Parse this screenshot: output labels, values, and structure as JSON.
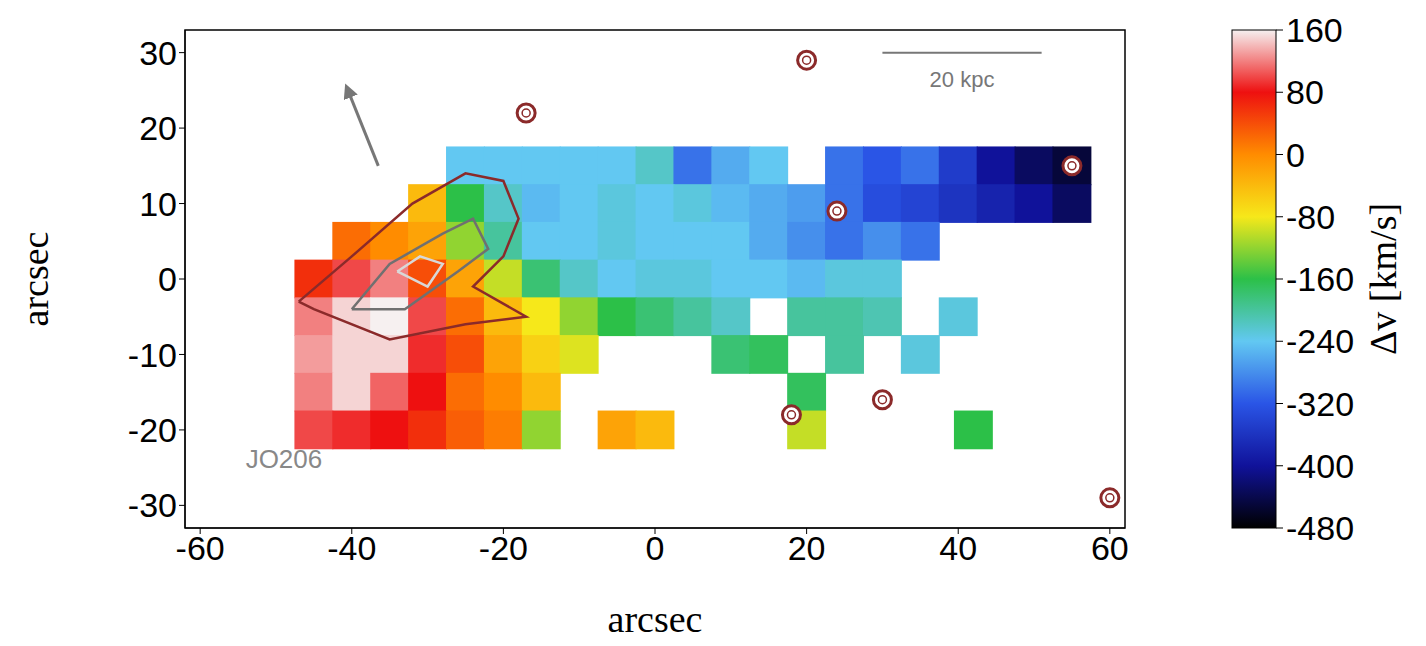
{
  "chart_data": {
    "type": "heatmap",
    "x_label": "arcsec",
    "y_label": "arcsec",
    "annotations": [
      "JO206",
      "20 kpc"
    ],
    "xlim": [
      -62,
      62
    ],
    "xticks": [
      -60,
      -40,
      -20,
      0,
      20,
      40,
      60
    ],
    "ylim": [
      -33,
      33
    ],
    "yticks": [
      -30,
      -20,
      -10,
      0,
      10,
      20,
      30
    ],
    "colorbar": {
      "label": "Δv [km/s]",
      "range": [
        -480,
        160
      ],
      "ticks": [
        160,
        80,
        0,
        -80,
        -160,
        -240,
        -320,
        -400,
        -480
      ]
    },
    "cells": [
      [
        -25,
        15,
        -240
      ],
      [
        -20,
        15,
        -240
      ],
      [
        -15,
        15,
        -240
      ],
      [
        -10,
        15,
        -240
      ],
      [
        -5,
        15,
        -240
      ],
      [
        0,
        15,
        -220
      ],
      [
        5,
        15,
        -300
      ],
      [
        10,
        15,
        -260
      ],
      [
        15,
        15,
        -240
      ],
      [
        25,
        15,
        -300
      ],
      [
        30,
        15,
        -320
      ],
      [
        35,
        15,
        -300
      ],
      [
        40,
        15,
        -350
      ],
      [
        45,
        15,
        -400
      ],
      [
        50,
        15,
        -430
      ],
      [
        55,
        15,
        -450
      ],
      [
        -30,
        10,
        -40
      ],
      [
        -25,
        10,
        -160
      ],
      [
        -20,
        10,
        -220
      ],
      [
        -15,
        10,
        -250
      ],
      [
        -10,
        10,
        -240
      ],
      [
        -5,
        10,
        -230
      ],
      [
        0,
        10,
        -240
      ],
      [
        5,
        10,
        -230
      ],
      [
        10,
        10,
        -250
      ],
      [
        15,
        10,
        -260
      ],
      [
        20,
        10,
        -270
      ],
      [
        25,
        10,
        -300
      ],
      [
        30,
        10,
        -330
      ],
      [
        35,
        10,
        -340
      ],
      [
        40,
        10,
        -360
      ],
      [
        45,
        10,
        -380
      ],
      [
        50,
        10,
        -400
      ],
      [
        55,
        10,
        -430
      ],
      [
        -40,
        5,
        20
      ],
      [
        -35,
        5,
        0
      ],
      [
        -30,
        5,
        -20
      ],
      [
        -25,
        5,
        -120
      ],
      [
        -20,
        5,
        -200
      ],
      [
        -15,
        5,
        -240
      ],
      [
        -10,
        5,
        -240
      ],
      [
        -5,
        5,
        -230
      ],
      [
        0,
        5,
        -240
      ],
      [
        5,
        5,
        -240
      ],
      [
        10,
        5,
        -240
      ],
      [
        15,
        5,
        -260
      ],
      [
        20,
        5,
        -280
      ],
      [
        25,
        5,
        -300
      ],
      [
        30,
        5,
        -280
      ],
      [
        35,
        5,
        -300
      ],
      [
        -45,
        0,
        60
      ],
      [
        -40,
        0,
        100
      ],
      [
        -35,
        0,
        120
      ],
      [
        -30,
        0,
        40
      ],
      [
        -25,
        0,
        -20
      ],
      [
        -20,
        0,
        -100
      ],
      [
        -15,
        0,
        -180
      ],
      [
        -10,
        0,
        -220
      ],
      [
        -5,
        0,
        -240
      ],
      [
        0,
        0,
        -230
      ],
      [
        5,
        0,
        -230
      ],
      [
        10,
        0,
        -240
      ],
      [
        15,
        0,
        -240
      ],
      [
        20,
        0,
        -250
      ],
      [
        25,
        0,
        -230
      ],
      [
        30,
        0,
        -230
      ],
      [
        -45,
        -5,
        120
      ],
      [
        -40,
        -5,
        150
      ],
      [
        -35,
        -5,
        160
      ],
      [
        -30,
        -5,
        100
      ],
      [
        -25,
        -5,
        20
      ],
      [
        -20,
        -5,
        -40
      ],
      [
        -15,
        -5,
        -80
      ],
      [
        -10,
        -5,
        -120
      ],
      [
        -5,
        -5,
        -160
      ],
      [
        0,
        -5,
        -180
      ],
      [
        5,
        -5,
        -200
      ],
      [
        10,
        -5,
        -220
      ],
      [
        20,
        -5,
        -200
      ],
      [
        25,
        -5,
        -200
      ],
      [
        30,
        -5,
        -210
      ],
      [
        40,
        -5,
        -230
      ],
      [
        -45,
        -10,
        130
      ],
      [
        -40,
        -10,
        150
      ],
      [
        -35,
        -10,
        150
      ],
      [
        -30,
        -10,
        90
      ],
      [
        -25,
        -10,
        40
      ],
      [
        -20,
        -10,
        -20
      ],
      [
        -15,
        -10,
        -60
      ],
      [
        -10,
        -10,
        -90
      ],
      [
        10,
        -10,
        -180
      ],
      [
        15,
        -10,
        -170
      ],
      [
        25,
        -10,
        -200
      ],
      [
        35,
        -10,
        -230
      ],
      [
        -45,
        -15,
        120
      ],
      [
        -40,
        -15,
        150
      ],
      [
        -35,
        -15,
        110
      ],
      [
        -30,
        -15,
        80
      ],
      [
        -25,
        -15,
        20
      ],
      [
        -20,
        -15,
        0
      ],
      [
        -15,
        -15,
        -40
      ],
      [
        20,
        -15,
        -170
      ],
      [
        -45,
        -20,
        100
      ],
      [
        -40,
        -20,
        90
      ],
      [
        -35,
        -20,
        80
      ],
      [
        -30,
        -20,
        60
      ],
      [
        -25,
        -20,
        30
      ],
      [
        -20,
        -20,
        10
      ],
      [
        -15,
        -20,
        -120
      ],
      [
        -5,
        -20,
        -20
      ],
      [
        0,
        -20,
        -40
      ],
      [
        20,
        -20,
        -100
      ],
      [
        42,
        -20,
        -160
      ]
    ],
    "stars": [
      [
        20,
        29
      ],
      [
        -17,
        22
      ],
      [
        24,
        9
      ],
      [
        55,
        15
      ],
      [
        18,
        -18
      ],
      [
        30,
        -16
      ],
      [
        60,
        -29
      ]
    ],
    "contours": [
      [
        [
          -47,
          -3
        ],
        [
          -40,
          3
        ],
        [
          -32,
          10
        ],
        [
          -25,
          14
        ],
        [
          -20,
          13
        ],
        [
          -18,
          8
        ],
        [
          -20,
          3
        ],
        [
          -24,
          -1
        ],
        [
          -17,
          -5
        ],
        [
          -25,
          -6
        ],
        [
          -35,
          -8
        ],
        [
          -45,
          -4
        ],
        [
          -47,
          -3
        ]
      ],
      [
        [
          -40,
          -4
        ],
        [
          -35,
          2
        ],
        [
          -28,
          6
        ],
        [
          -24,
          8
        ],
        [
          -22,
          4
        ],
        [
          -26,
          1
        ],
        [
          -33,
          -4
        ],
        [
          -40,
          -4
        ]
      ],
      [
        [
          -34,
          1
        ],
        [
          -31,
          3
        ],
        [
          -28,
          2
        ],
        [
          -30,
          -1
        ],
        [
          -34,
          1
        ]
      ]
    ]
  }
}
